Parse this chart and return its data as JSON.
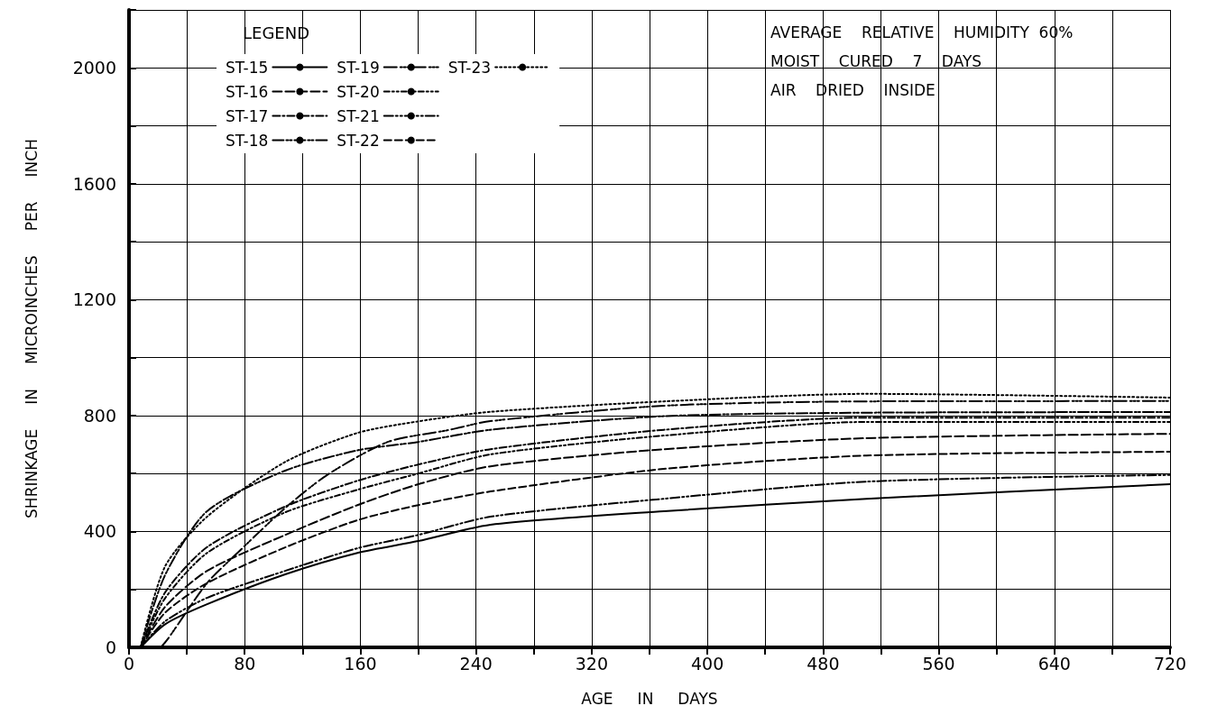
{
  "chart_data": {
    "type": "line",
    "xlabel": "AGE     IN     DAYS",
    "ylabel": "SHRINKAGE     IN     MICROINCHES     PER     INCH",
    "legend_title": "LEGEND",
    "legend": "top left",
    "grid": true,
    "marker": "none",
    "annotations": [
      "AVERAGE    RELATIVE    HUMIDITY  60%",
      "MOIST    CURED    7    DAYS",
      "AIR    DRIED    INSIDE"
    ],
    "xlim": [
      0,
      720
    ],
    "xticks": [
      0,
      {
        "value": 40,
        "label": null
      },
      80,
      {
        "value": 120,
        "label": null
      },
      160,
      {
        "value": 200,
        "label": null
      },
      240,
      {
        "value": 280,
        "label": null
      },
      320,
      {
        "value": 360,
        "label": null
      },
      400,
      {
        "value": 440,
        "label": null
      },
      480,
      {
        "value": 520,
        "label": null
      },
      560,
      {
        "value": 600,
        "label": null
      },
      640,
      {
        "value": 680,
        "label": null
      },
      720
    ],
    "ylim": [
      0,
      2200
    ],
    "yticks": [
      0,
      {
        "value": 200,
        "label": null
      },
      400,
      {
        "value": 600,
        "label": null
      },
      800,
      {
        "value": 1000,
        "label": null
      },
      1200,
      {
        "value": 1400,
        "label": null
      },
      1600,
      {
        "value": 1800,
        "label": null
      },
      2000,
      {
        "value": 2200,
        "label": null
      }
    ],
    "x": [
      8,
      25,
      54,
      108,
      158,
      200,
      250,
      370,
      510,
      720
    ],
    "series": [
      {
        "name": "ST-15",
        "color": "#000000",
        "line_style": "solid",
        "values": [
          0,
          80,
          149,
          252,
          326,
          367,
          423,
          470,
          513,
          563
        ]
      },
      {
        "name": "ST-16",
        "color": "#000000",
        "line_style": "dashed",
        "values": [
          0,
          140,
          264,
          388,
          491,
          563,
          625,
          684,
          722,
          737
        ]
      },
      {
        "name": "ST-17",
        "color": "#000000",
        "line_style": "dashed",
        "values": [
          0,
          190,
          346,
          486,
          575,
          631,
          684,
          751,
          793,
          793
        ]
      },
      {
        "name": "ST-18",
        "color": "#000000",
        "line_style": "dashed",
        "values": [
          0,
          250,
          470,
          610,
          680,
          709,
          751,
          798,
          810,
          812
        ]
      },
      {
        "name": "ST-19",
        "color": "#000000",
        "line_style": "dashed",
        "x": [
          22,
          27,
          54,
          75,
          108,
          137,
          179,
          221,
          250,
          370,
          510,
          720
        ],
        "values": [
          0,
          30,
          222,
          326,
          481,
          595,
          709,
          750,
          781,
          834,
          849,
          850
        ]
      },
      {
        "name": "ST-20",
        "color": "#000000",
        "line_style": "dashed",
        "values": [
          0,
          170,
          326,
          466,
          544,
          600,
          666,
          731,
          778,
          778
        ]
      },
      {
        "name": "ST-21",
        "color": "#000000",
        "line_style": "dashed",
        "values": [
          0,
          90,
          171,
          264,
          342,
          388,
          451,
          513,
          572,
          595
        ]
      },
      {
        "name": "ST-22",
        "color": "#000000",
        "line_style": "dashed",
        "values": [
          0,
          120,
          222,
          345,
          439,
          491,
          538,
          616,
          662,
          675
        ]
      },
      {
        "name": "ST-23",
        "color": "#000000",
        "line_style": "dotted",
        "values": [
          0,
          280,
          451,
          640,
          740,
          780,
          813,
          849,
          875,
          862
        ]
      }
    ]
  }
}
